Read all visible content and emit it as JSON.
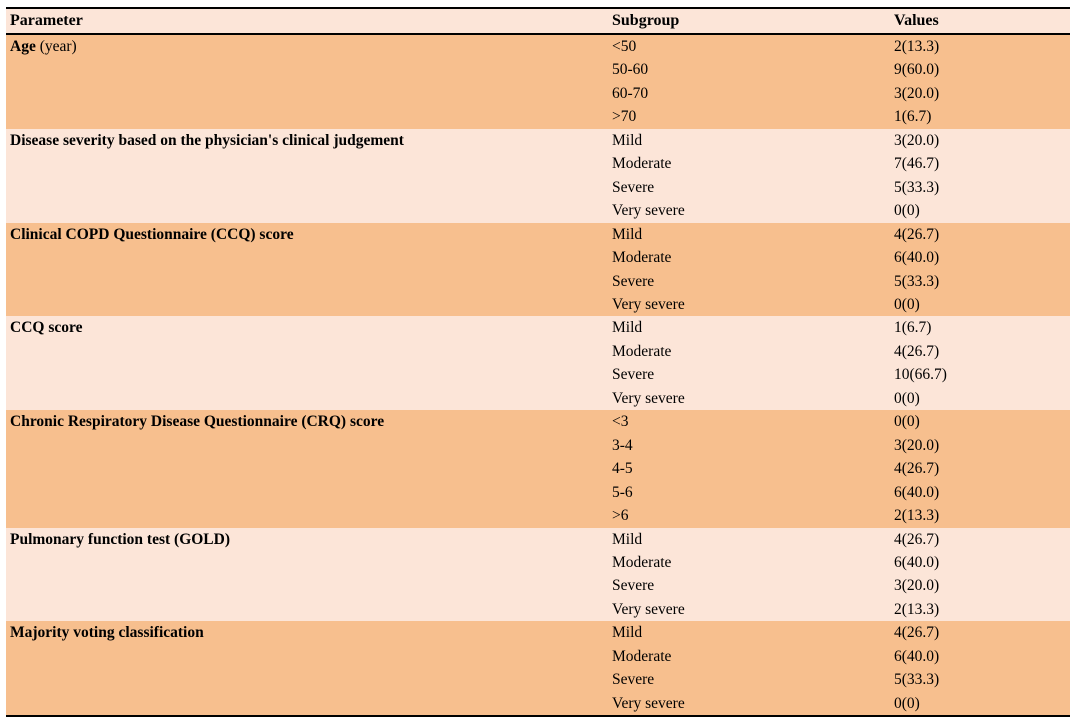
{
  "colors": {
    "row_dark": "#f7bf8e",
    "row_light": "#fce5d8",
    "header_bg": "#fce5d8",
    "border": "#000000",
    "text": "#000000"
  },
  "table": {
    "columns": [
      "Parameter",
      "Subgroup",
      "Values"
    ],
    "groups": [
      {
        "parameter": "Age",
        "parameter_note": "(year)",
        "shade": "dark",
        "rows": [
          [
            "<50",
            "2(13.3)"
          ],
          [
            "50-60",
            "9(60.0)"
          ],
          [
            "60-70",
            "3(20.0)"
          ],
          [
            ">70",
            "1(6.7)"
          ]
        ]
      },
      {
        "parameter": "Disease severity based on the physician's clinical judgement",
        "parameter_note": "",
        "shade": "light",
        "rows": [
          [
            "Mild",
            "3(20.0)"
          ],
          [
            "Moderate",
            "7(46.7)"
          ],
          [
            "Severe",
            "5(33.3)"
          ],
          [
            "Very severe",
            "0(0)"
          ]
        ]
      },
      {
        "parameter": "Clinical COPD Questionnaire (CCQ) score",
        "parameter_note": "",
        "shade": "dark",
        "rows": [
          [
            "Mild",
            "4(26.7)"
          ],
          [
            "Moderate",
            "6(40.0)"
          ],
          [
            "Severe",
            "5(33.3)"
          ],
          [
            "Very severe",
            "0(0)"
          ]
        ]
      },
      {
        "parameter": "CCQ score",
        "parameter_note": "",
        "shade": "light",
        "rows": [
          [
            "Mild",
            "1(6.7)"
          ],
          [
            "Moderate",
            "4(26.7)"
          ],
          [
            "Severe",
            "10(66.7)"
          ],
          [
            "Very severe",
            "0(0)"
          ]
        ]
      },
      {
        "parameter": "Chronic Respiratory Disease Questionnaire (CRQ) score",
        "parameter_note": "",
        "shade": "dark",
        "rows": [
          [
            "<3",
            "0(0)"
          ],
          [
            "3-4",
            "3(20.0)"
          ],
          [
            "4-5",
            "4(26.7)"
          ],
          [
            "5-6",
            "6(40.0)"
          ],
          [
            ">6",
            "2(13.3)"
          ]
        ]
      },
      {
        "parameter": "Pulmonary function test (GOLD)",
        "parameter_note": "",
        "shade": "light",
        "rows": [
          [
            "Mild",
            "4(26.7)"
          ],
          [
            "Moderate",
            "6(40.0)"
          ],
          [
            "Severe",
            "3(20.0)"
          ],
          [
            "Very severe",
            "2(13.3)"
          ]
        ]
      },
      {
        "parameter": "Majority voting classification",
        "parameter_note": "",
        "shade": "dark",
        "rows": [
          [
            "Mild",
            "4(26.7)"
          ],
          [
            "Moderate",
            "6(40.0)"
          ],
          [
            "Severe",
            "5(33.3)"
          ],
          [
            "Very severe",
            "0(0)"
          ]
        ]
      }
    ]
  }
}
